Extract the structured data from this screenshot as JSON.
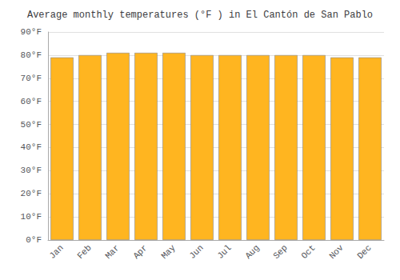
{
  "chart_data": {
    "type": "bar",
    "title": "Average monthly temperatures (°F ) in El Cantón de San Pablo",
    "categories": [
      "Jan",
      "Feb",
      "Mar",
      "Apr",
      "May",
      "Jun",
      "Jul",
      "Aug",
      "Sep",
      "Oct",
      "Nov",
      "Dec"
    ],
    "values": [
      79,
      80,
      81,
      81,
      81,
      80,
      80,
      80,
      80,
      80,
      79,
      79
    ],
    "color": "#FFB520",
    "ylim": [
      0,
      90
    ],
    "yticks": [
      {
        "value": 0,
        "label": "0°F"
      },
      {
        "value": 10,
        "label": "10°F"
      },
      {
        "value": 20,
        "label": "20°F"
      },
      {
        "value": 30,
        "label": "30°F"
      },
      {
        "value": 40,
        "label": "40°F"
      },
      {
        "value": 50,
        "label": "50°F"
      },
      {
        "value": 60,
        "label": "60°F"
      },
      {
        "value": 70,
        "label": "70°F"
      },
      {
        "value": 80,
        "label": "80°F"
      },
      {
        "value": 90,
        "label": "90°F"
      }
    ],
    "grid": true
  }
}
